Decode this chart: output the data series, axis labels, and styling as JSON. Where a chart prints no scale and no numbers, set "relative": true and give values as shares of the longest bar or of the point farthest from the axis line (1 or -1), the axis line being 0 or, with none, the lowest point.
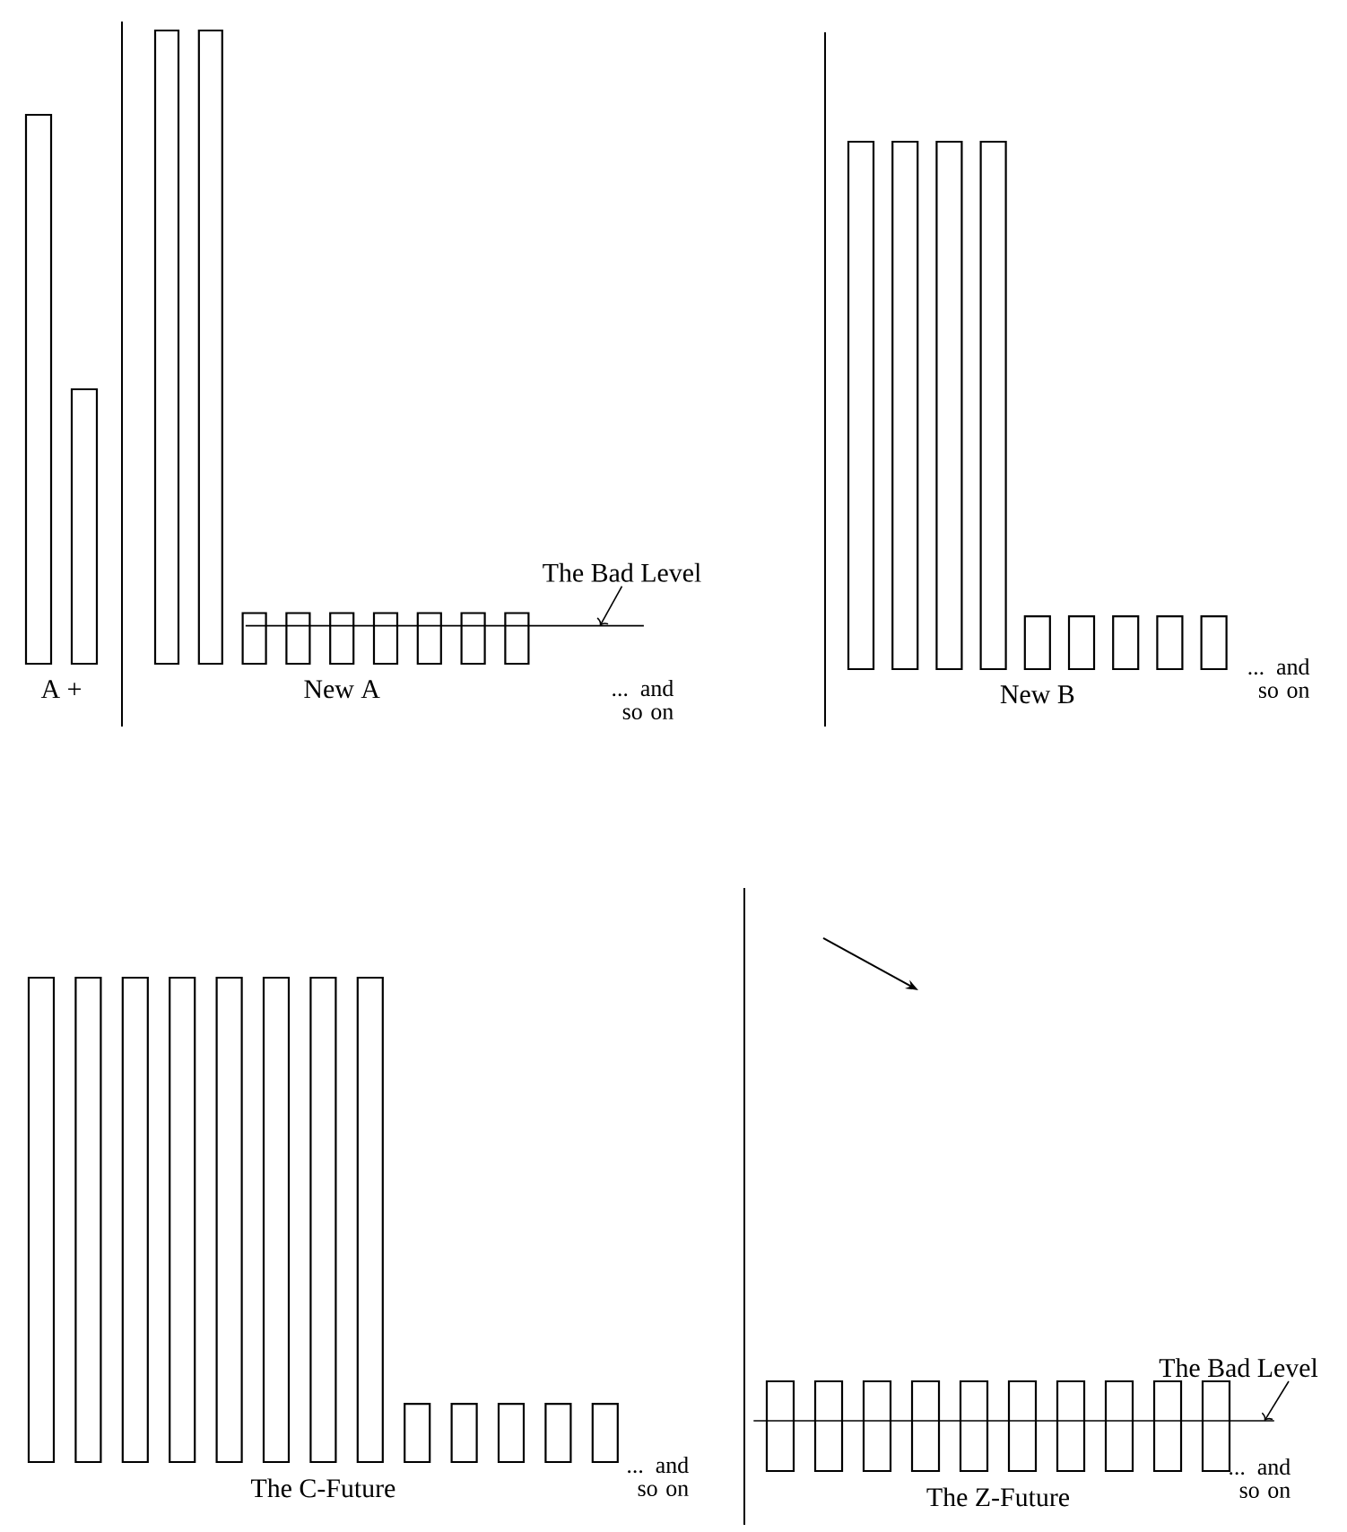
{
  "chart_data": [
    {
      "type": "bar",
      "relative": true,
      "xlabel": "A +",
      "categories": [
        null,
        null
      ],
      "values": [
        1,
        0.5
      ],
      "color": "#ffffff"
    },
    {
      "type": "bar",
      "relative": true,
      "xlabel": "New A",
      "categories": [
        null,
        null,
        null,
        null,
        null,
        null,
        null,
        null,
        null
      ],
      "values": [
        1,
        1,
        0.08,
        0.08,
        0.08,
        0.08,
        0.08,
        0.08,
        0.08
      ],
      "color": "#ffffff",
      "ref_lines": [
        {
          "axis": "y",
          "value": 0.06,
          "label": "The Bad Level"
        }
      ],
      "annotations": [
        "... and so on"
      ]
    },
    {
      "type": "bar",
      "relative": true,
      "xlabel": "New B",
      "categories": [
        null,
        null,
        null,
        null,
        null,
        null,
        null,
        null,
        null
      ],
      "values": [
        1,
        1,
        1,
        1,
        0.1,
        0.1,
        0.1,
        0.1,
        0.1
      ],
      "color": "#ffffff",
      "annotations": [
        "... and so on"
      ]
    },
    {
      "type": "bar",
      "relative": true,
      "xlabel": "The C-Future",
      "categories": [
        null,
        null,
        null,
        null,
        null,
        null,
        null,
        null,
        null,
        null,
        null,
        null,
        null
      ],
      "values": [
        1,
        1,
        1,
        1,
        1,
        1,
        1,
        1,
        0.12,
        0.12,
        0.12,
        0.12,
        0.12
      ],
      "color": "#ffffff",
      "annotations": [
        "... and so on"
      ]
    },
    {
      "type": "bar",
      "relative": true,
      "xlabel": "The Z-Future",
      "categories": [
        null,
        null,
        null,
        null,
        null,
        null,
        null,
        null,
        null,
        null
      ],
      "values": [
        1,
        1,
        1,
        1,
        1,
        1,
        1,
        1,
        1,
        1
      ],
      "color": "#ffffff",
      "ref_lines": [
        {
          "axis": "y",
          "value": 0.56,
          "label": "The Bad Level"
        }
      ],
      "annotations": [
        "... and so on"
      ]
    }
  ]
}
